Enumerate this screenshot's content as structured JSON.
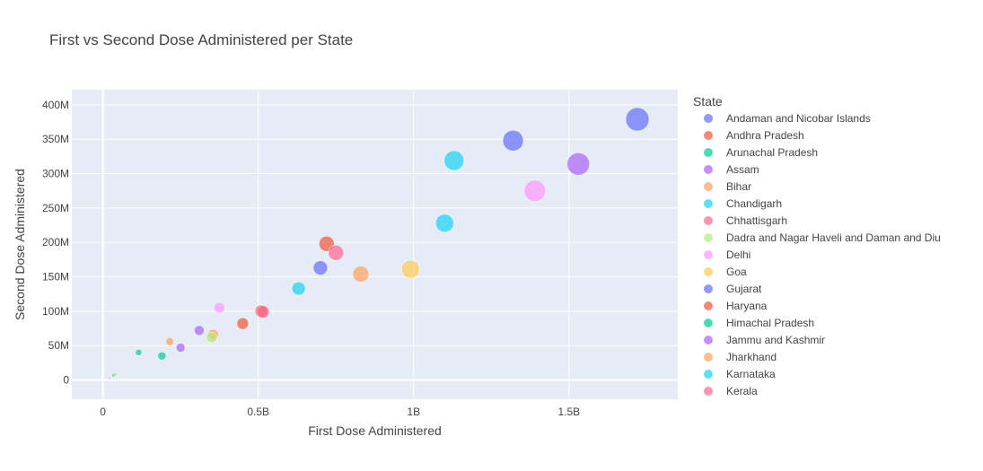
{
  "chart_data": {
    "type": "scatter",
    "title": "First vs Second Dose Administered per State",
    "xlabel": "First Dose Administered",
    "ylabel": "Second Dose Administered",
    "xlim": [
      -0.1,
      1.85
    ],
    "ylim": [
      -28,
      422
    ],
    "x_unit": "billion",
    "y_unit": "million",
    "x_ticks": [
      0,
      0.5,
      1,
      1.5
    ],
    "x_tick_labels": [
      "0",
      "0.5B",
      "1B",
      "1.5B"
    ],
    "y_ticks": [
      0,
      50,
      100,
      150,
      200,
      250,
      300,
      350,
      400
    ],
    "y_tick_labels": [
      "0",
      "50M",
      "100M",
      "150M",
      "200M",
      "250M",
      "300M",
      "350M",
      "400M"
    ],
    "grid": true,
    "legend_title": "State",
    "legend_position": "right",
    "series": [
      {
        "name": "Andaman and Nicobar Islands",
        "color": "#636efa",
        "points": [
          {
            "x": 1.72,
            "y": 379,
            "r": 13
          },
          {
            "x": 1.32,
            "y": 348,
            "r": 11.5
          },
          {
            "x": 0.7,
            "y": 163,
            "r": 8
          }
        ]
      },
      {
        "name": "Andhra Pradesh",
        "color": "#ef553b",
        "points": [
          {
            "x": 0.72,
            "y": 198,
            "r": 8.5
          },
          {
            "x": 0.51,
            "y": 100,
            "r": 7
          },
          {
            "x": 0.45,
            "y": 82,
            "r": 6.5
          }
        ]
      },
      {
        "name": "Arunachal Pradesh",
        "color": "#00cc96",
        "points": [
          {
            "x": 0.19,
            "y": 35,
            "r": 4.5
          },
          {
            "x": 0.115,
            "y": 40,
            "r": 3.5
          },
          {
            "x": 0.035,
            "y": 7,
            "r": 2
          }
        ]
      },
      {
        "name": "Assam",
        "color": "#ab63fa",
        "points": [
          {
            "x": 1.53,
            "y": 314,
            "r": 12.5
          },
          {
            "x": 0.31,
            "y": 72,
            "r": 5.5
          },
          {
            "x": 0.25,
            "y": 47,
            "r": 5
          }
        ]
      },
      {
        "name": "Bihar",
        "color": "#ffa15a",
        "points": [
          {
            "x": 0.83,
            "y": 154,
            "r": 9
          },
          {
            "x": 0.355,
            "y": 66,
            "r": 6
          },
          {
            "x": 0.215,
            "y": 56,
            "r": 4.5
          }
        ]
      },
      {
        "name": "Chandigarh",
        "color": "#19d3f3",
        "points": [
          {
            "x": 1.13,
            "y": 319,
            "r": 11
          },
          {
            "x": 1.1,
            "y": 228,
            "r": 10
          },
          {
            "x": 0.63,
            "y": 133,
            "r": 7.5
          }
        ]
      },
      {
        "name": "Chhattisgarh",
        "color": "#ff6692",
        "points": [
          {
            "x": 0.75,
            "y": 185,
            "r": 8.5
          },
          {
            "x": 0.515,
            "y": 99,
            "r": 7
          }
        ]
      },
      {
        "name": "Dadra and Nagar Haveli and Daman and Diu",
        "color": "#b6e880",
        "points": [
          {
            "x": 0.35,
            "y": 62,
            "r": 6
          },
          {
            "x": 0.04,
            "y": 8,
            "r": 2
          }
        ]
      },
      {
        "name": "Delhi",
        "color": "#ff97ff",
        "points": [
          {
            "x": 1.39,
            "y": 275,
            "r": 12
          },
          {
            "x": 0.375,
            "y": 105,
            "r": 6
          },
          {
            "x": 0.02,
            "y": 3,
            "r": 1.5
          }
        ]
      },
      {
        "name": "Goa",
        "color": "#fecb52",
        "points": [
          {
            "x": 0.99,
            "y": 161,
            "r": 10
          }
        ]
      },
      {
        "name": "Gujarat",
        "color": "#636efa",
        "points": []
      },
      {
        "name": "Haryana",
        "color": "#ef553b",
        "points": []
      },
      {
        "name": "Himachal Pradesh",
        "color": "#00cc96",
        "points": []
      },
      {
        "name": "Jammu and Kashmir",
        "color": "#ab63fa",
        "points": []
      },
      {
        "name": "Jharkhand",
        "color": "#ffa15a",
        "points": []
      },
      {
        "name": "Karnataka",
        "color": "#19d3f3",
        "points": []
      },
      {
        "name": "Kerala",
        "color": "#ff6692",
        "points": []
      }
    ]
  }
}
